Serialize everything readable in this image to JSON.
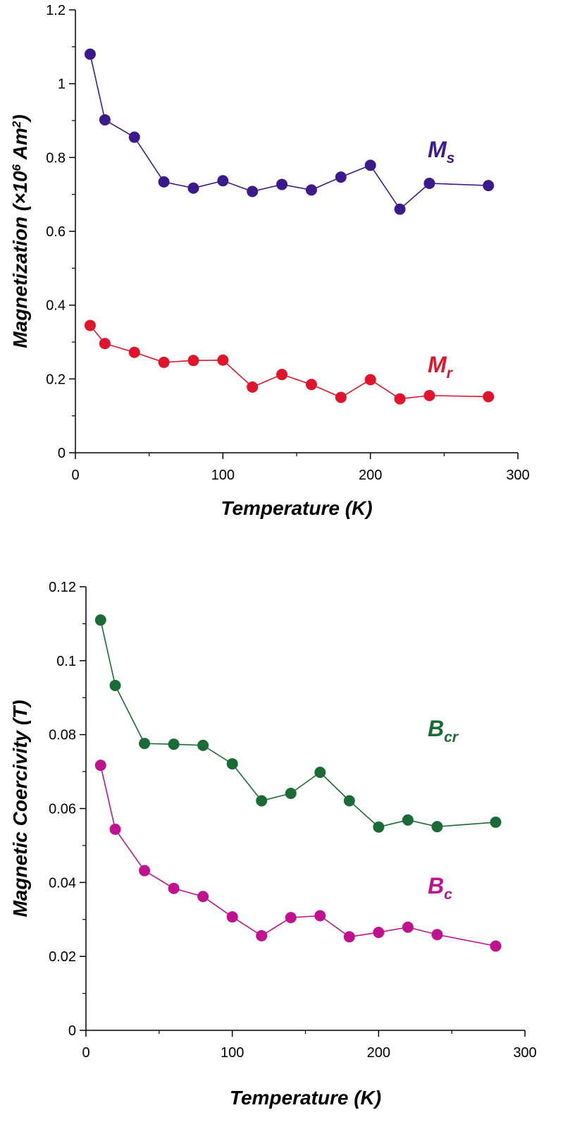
{
  "chart_data": [
    {
      "type": "line",
      "xlabel": "Temperature (K)",
      "ylabel": "Magnetization (×10",
      "ylabel_exp": "6",
      "ylabel_unit": " Am",
      "ylabel_unit_exp": "2",
      "ylabel_close": ")",
      "xlim": [
        0,
        300
      ],
      "ylim": [
        0,
        1.2
      ],
      "xticks": [
        0,
        100,
        200,
        300
      ],
      "yticks": [
        0,
        0.2,
        0.4,
        0.6,
        0.8,
        1,
        1.2
      ],
      "xtick_labels": [
        "0",
        "100",
        "200",
        "300"
      ],
      "ytick_labels": [
        "0",
        "0.2",
        "0.4",
        "0.6",
        "0.8",
        "1",
        "1.2"
      ],
      "grid": false,
      "series": [
        {
          "name": "M",
          "name_sub": "s",
          "color": "#3d1a8c",
          "x": [
            10,
            20,
            40,
            60,
            80,
            100,
            120,
            140,
            160,
            180,
            200,
            220,
            240,
            280
          ],
          "y": [
            1.08,
            0.902,
            0.855,
            0.734,
            0.717,
            0.737,
            0.708,
            0.727,
            0.712,
            0.747,
            0.779,
            0.66,
            0.73,
            0.724
          ]
        },
        {
          "name": "M",
          "name_sub": "r",
          "color": "#e0142a",
          "x": [
            10,
            20,
            40,
            60,
            80,
            100,
            120,
            140,
            160,
            180,
            200,
            220,
            240,
            280
          ],
          "y": [
            0.345,
            0.296,
            0.272,
            0.245,
            0.25,
            0.251,
            0.178,
            0.212,
            0.185,
            0.15,
            0.198,
            0.146,
            0.155,
            0.152
          ]
        }
      ]
    },
    {
      "type": "line",
      "xlabel": "Temperature (K)",
      "ylabel": "Magnetic Coercivity (T)",
      "xlim": [
        0,
        300
      ],
      "ylim": [
        0,
        0.12
      ],
      "xticks": [
        0,
        100,
        200,
        300
      ],
      "yticks": [
        0,
        0.02,
        0.04,
        0.06,
        0.08,
        0.1,
        0.12
      ],
      "xtick_labels": [
        "0",
        "100",
        "200",
        "300"
      ],
      "ytick_labels": [
        "0",
        "0.02",
        "0.04",
        "0.06",
        "0.08",
        "0.1",
        "0.12"
      ],
      "grid": false,
      "series": [
        {
          "name": "B",
          "name_sub": "cr",
          "color": "#1a6b36",
          "x": [
            10,
            20,
            40,
            60,
            80,
            100,
            120,
            140,
            160,
            180,
            200,
            220,
            240,
            280
          ],
          "y": [
            0.111,
            0.0933,
            0.0776,
            0.0774,
            0.0771,
            0.0721,
            0.0621,
            0.0641,
            0.0698,
            0.0621,
            0.055,
            0.0569,
            0.0551,
            0.0563
          ]
        },
        {
          "name": "B",
          "name_sub": "c",
          "color": "#c0128f",
          "x": [
            10,
            20,
            40,
            60,
            80,
            100,
            120,
            140,
            160,
            180,
            200,
            220,
            240,
            280
          ],
          "y": [
            0.0717,
            0.0544,
            0.0432,
            0.0384,
            0.0362,
            0.0307,
            0.0256,
            0.0305,
            0.031,
            0.0253,
            0.0265,
            0.0279,
            0.0259,
            0.0228
          ]
        }
      ]
    }
  ]
}
